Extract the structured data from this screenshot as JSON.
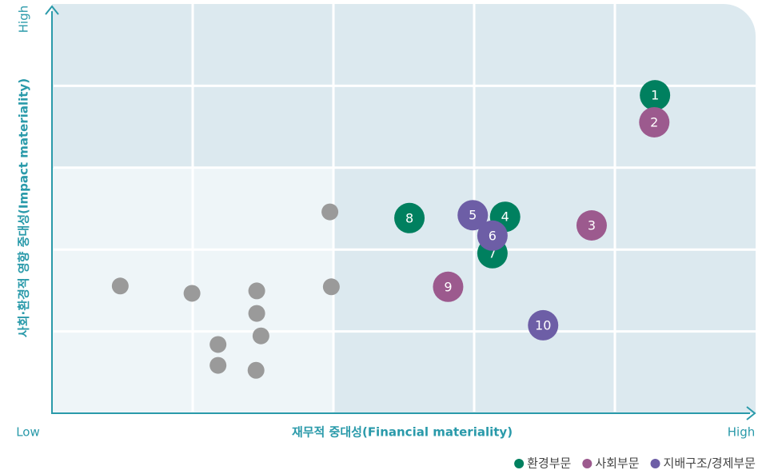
{
  "chart_data": {
    "type": "scatter",
    "x_label": "재무적 중대성(Financial materiality)",
    "y_label": "사회·환경적 영향 중대성(Impact materiality)",
    "x_low": "Low",
    "x_high": "High",
    "y_high": "High",
    "xlim": [
      0,
      100
    ],
    "ylim": [
      0,
      100
    ],
    "xticks": [
      20,
      40,
      60,
      80
    ],
    "yticks": [
      20,
      40,
      60,
      80
    ],
    "grid": true,
    "series": [
      {
        "name": "환경부문",
        "color": "#00805f",
        "labels": [
          "1",
          "4",
          "7",
          "8"
        ],
        "x": [
          85.7,
          64.4,
          62.6,
          50.8
        ],
        "values": [
          77.7,
          48.0,
          39.1,
          47.7
        ]
      },
      {
        "name": "사회부문",
        "color": "#9c5a8e",
        "labels": [
          "2",
          "3",
          "9"
        ],
        "x": [
          85.6,
          76.7,
          56.3
        ],
        "values": [
          71.1,
          45.9,
          30.9
        ]
      },
      {
        "name": "지배구조/경제부문",
        "color": "#6d5ea6",
        "labels": [
          "5",
          "6",
          "10"
        ],
        "x": [
          59.8,
          62.6,
          69.8
        ],
        "values": [
          48.4,
          43.4,
          21.5
        ]
      },
      {
        "color": "#9a9a9a",
        "x": [
          39.5,
          9.7,
          19.9,
          29.1,
          39.7,
          29.1,
          29.7,
          23.6,
          23.6,
          29.0
        ],
        "values": [
          49.2,
          31.1,
          29.3,
          29.9,
          30.9,
          24.4,
          18.9,
          16.8,
          11.7,
          10.5
        ]
      }
    ],
    "legend": "bottom-right"
  }
}
